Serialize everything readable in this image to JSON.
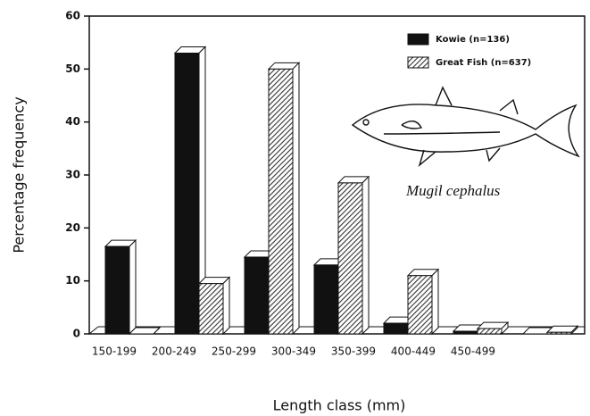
{
  "chart_data": {
    "type": "bar",
    "categories": [
      "150-199",
      "200-249",
      "250-299",
      "300-349",
      "350-399",
      "400-449",
      "450-499"
    ],
    "series": [
      {
        "name": "Kowie (n=136)",
        "color": "#111111",
        "values": [
          16.5,
          53,
          14.5,
          13,
          2,
          0.5,
          0
        ]
      },
      {
        "name": "Great Fish (n=637)",
        "color": "#888888",
        "pattern": "hatch",
        "values": [
          0,
          9.5,
          50,
          28.5,
          11,
          1,
          0.3
        ]
      }
    ],
    "ylim": [
      0,
      60
    ],
    "yticks": [
      0,
      10,
      20,
      30,
      40,
      50,
      60
    ],
    "xlabel": "Length class (mm)",
    "ylabel": "Percentage frequency",
    "annotation": "Mugil cephalus",
    "legend": "upper right"
  }
}
